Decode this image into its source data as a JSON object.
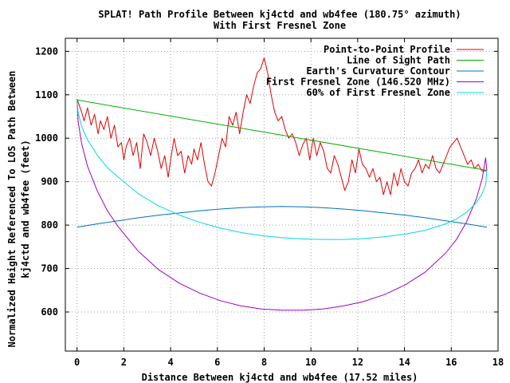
{
  "chart_data": {
    "type": "line",
    "title": "SPLAT! Path Profile Between kj4ctd and wb4fee (180.75° azimuth)",
    "subtitle": "With First Fresnel Zone",
    "xlabel": "Distance Between kj4ctd and wb4fee (17.52 miles)",
    "ylabel_line1": "Normalized Height Referenced To LOS Path Between",
    "ylabel_line2": "kj4ctd and wb4fee (feet)",
    "xlim": [
      -0.5,
      18
    ],
    "ylim": [
      510,
      1230
    ],
    "x_ticks": [
      0,
      2,
      4,
      6,
      8,
      10,
      12,
      14,
      16,
      18
    ],
    "y_ticks": [
      600,
      700,
      800,
      900,
      1000,
      1100,
      1200
    ],
    "grid": true,
    "legend_position": "top-right",
    "series": [
      {
        "name": "Point-to-Point Profile",
        "color": "#e00000",
        "x": [
          0,
          0.1,
          0.2,
          0.3,
          0.45,
          0.6,
          0.75,
          0.9,
          1.0,
          1.15,
          1.3,
          1.45,
          1.6,
          1.75,
          1.9,
          2.0,
          2.1,
          2.25,
          2.4,
          2.55,
          2.7,
          2.85,
          3.0,
          3.15,
          3.3,
          3.45,
          3.6,
          3.75,
          3.9,
          4.0,
          4.15,
          4.3,
          4.45,
          4.6,
          4.75,
          4.9,
          5.0,
          5.15,
          5.3,
          5.45,
          5.6,
          5.75,
          5.9,
          6.05,
          6.2,
          6.35,
          6.5,
          6.65,
          6.8,
          6.95,
          7.1,
          7.25,
          7.4,
          7.55,
          7.7,
          7.85,
          8.0,
          8.15,
          8.3,
          8.45,
          8.6,
          8.75,
          8.9,
          9.05,
          9.2,
          9.35,
          9.5,
          9.65,
          9.8,
          9.95,
          10.1,
          10.25,
          10.4,
          10.55,
          10.7,
          10.85,
          11.0,
          11.15,
          11.3,
          11.45,
          11.6,
          11.75,
          11.9,
          12.05,
          12.2,
          12.35,
          12.5,
          12.65,
          12.8,
          12.95,
          13.1,
          13.25,
          13.4,
          13.55,
          13.7,
          13.85,
          14.0,
          14.15,
          14.3,
          14.45,
          14.6,
          14.75,
          14.9,
          15.05,
          15.2,
          15.35,
          15.5,
          15.65,
          15.8,
          15.95,
          16.1,
          16.25,
          16.4,
          16.55,
          16.7,
          16.85,
          17.0,
          17.15,
          17.3,
          17.52
        ],
        "y": [
          1090,
          1075,
          1060,
          1040,
          1070,
          1030,
          1055,
          1010,
          1040,
          1020,
          1050,
          1000,
          1030,
          980,
          990,
          950,
          980,
          1000,
          960,
          990,
          930,
          1010,
          990,
          960,
          1000,
          970,
          930,
          960,
          910,
          950,
          1000,
          960,
          970,
          920,
          960,
          940,
          975,
          950,
          990,
          940,
          900,
          890,
          920,
          960,
          1000,
          980,
          1050,
          1030,
          1060,
          1010,
          1060,
          1100,
          1080,
          1120,
          1150,
          1160,
          1185,
          1150,
          1100,
          1060,
          1040,
          1050,
          1020,
          1000,
          1010,
          990,
          960,
          985,
          1000,
          950,
          1000,
          960,
          990,
          970,
          930,
          920,
          960,
          940,
          910,
          880,
          900,
          950,
          920,
          975,
          940,
          930,
          910,
          930,
          900,
          910,
          870,
          900,
          870,
          920,
          890,
          930,
          900,
          890,
          920,
          930,
          950,
          920,
          940,
          930,
          960,
          930,
          920,
          940,
          960,
          980,
          990,
          1000,
          980,
          960,
          940,
          950,
          930,
          940,
          925,
          925
        ]
      },
      {
        "name": "Line of Sight Path",
        "color": "#00b000",
        "x": [
          0,
          17.52
        ],
        "y": [
          1088,
          926
        ]
      },
      {
        "name": "Earth's Curvature Contour",
        "color": "#0070c0",
        "x": [
          0,
          0.88,
          1.75,
          2.63,
          3.5,
          4.38,
          5.26,
          6.13,
          7.01,
          7.88,
          8.76,
          9.64,
          10.51,
          11.39,
          12.26,
          13.14,
          14.02,
          14.89,
          15.77,
          16.64,
          17.52
        ],
        "y": [
          795,
          803,
          810,
          817,
          823,
          828,
          833,
          837,
          840,
          842,
          843,
          842,
          840,
          837,
          833,
          828,
          823,
          817,
          810,
          803,
          795
        ]
      },
      {
        "name": "First Fresnel Zone (146.520 MHz)",
        "color": "#a000c0",
        "x": [
          0,
          0.05,
          0.2,
          0.45,
          0.88,
          1.3,
          1.75,
          2.63,
          3.5,
          4.38,
          5.26,
          6.13,
          7.01,
          7.88,
          8.76,
          9.64,
          10.51,
          11.39,
          12.26,
          13.14,
          14.02,
          14.89,
          15.77,
          16.22,
          16.64,
          17.07,
          17.32,
          17.47,
          17.52
        ],
        "y": [
          1088,
          1038,
          987,
          935,
          877,
          833,
          797,
          739,
          697,
          666,
          643,
          626,
          614,
          607,
          604,
          604,
          607,
          614,
          624,
          640,
          662,
          692,
          736,
          767,
          806,
          860,
          906,
          955,
          926
        ]
      },
      {
        "name": "60% of First Fresnel Zone",
        "color": "#00d8e8",
        "x": [
          0,
          0.05,
          0.2,
          0.45,
          0.88,
          1.3,
          1.75,
          2.63,
          3.5,
          4.38,
          5.26,
          6.13,
          7.01,
          7.88,
          8.76,
          9.64,
          10.51,
          11.39,
          12.26,
          13.14,
          14.02,
          14.89,
          15.77,
          16.22,
          16.64,
          17.07,
          17.32,
          17.47,
          17.52
        ],
        "y": [
          1088,
          1058,
          1027,
          996,
          960,
          932,
          911,
          872,
          844,
          823,
          806,
          793,
          783,
          776,
          771,
          768,
          767,
          767,
          769,
          773,
          779,
          788,
          803,
          814,
          829,
          851,
          872,
          893,
          926
        ]
      }
    ]
  }
}
